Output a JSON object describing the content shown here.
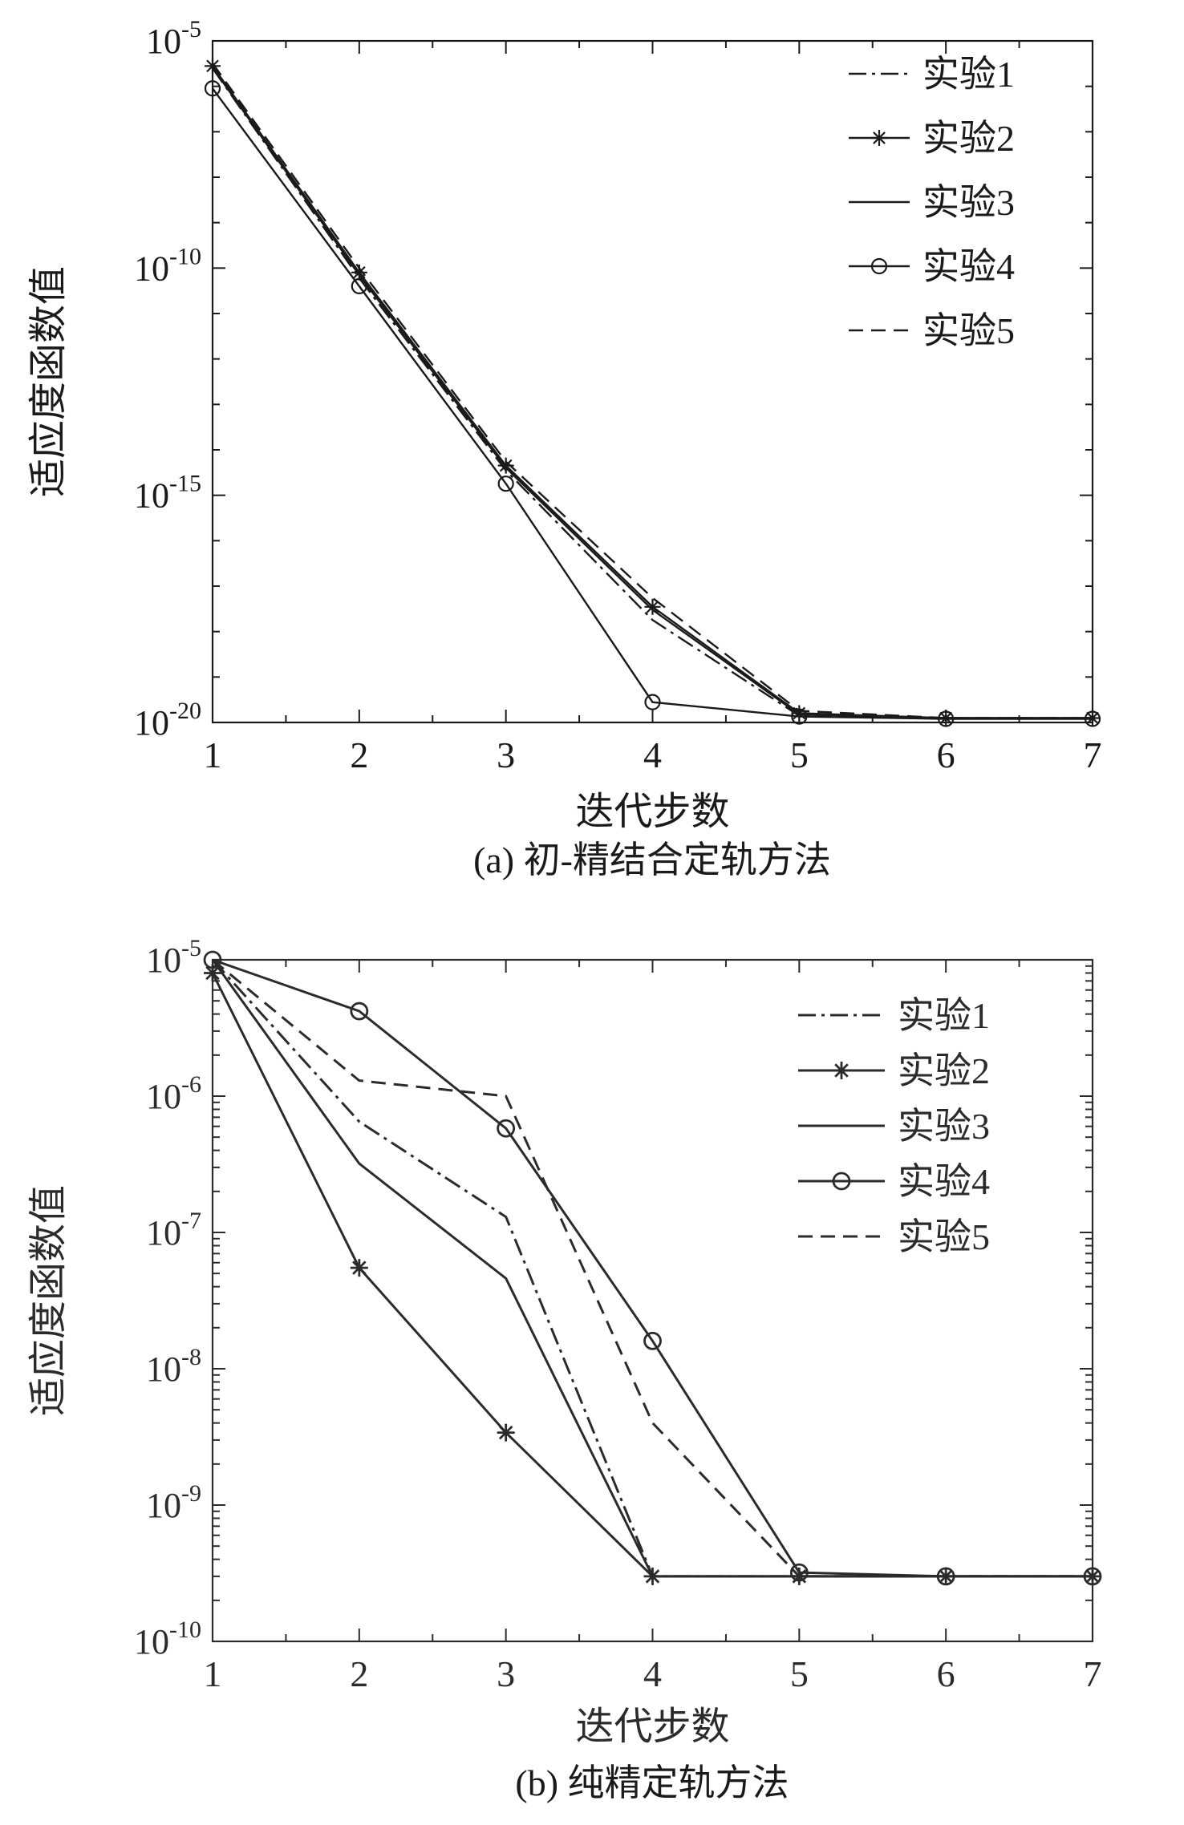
{
  "page": {
    "background": "#ffffff",
    "text_color": "#1a1a1a"
  },
  "chart_data": [
    {
      "id": "a",
      "type": "line",
      "caption": "(a) 初-精结合定轨方法",
      "xlabel": "迭代步数",
      "ylabel": "适应度函数值",
      "x": [
        1,
        2,
        3,
        4,
        5,
        6,
        7
      ],
      "xlim": [
        1,
        7
      ],
      "x_ticks": [
        1,
        2,
        3,
        4,
        5,
        6,
        7
      ],
      "y_scale": "log",
      "ylim": [
        1e-20,
        1e-05
      ],
      "ylim_exp": [
        -20,
        -5
      ],
      "y_tick_exponents": [
        -5,
        -10,
        -15,
        -20
      ],
      "y_minor": "decades",
      "grid": false,
      "legend_position": "top-right-inside",
      "line_color": "#1a1a1a",
      "series": [
        {
          "name": "实验1",
          "line": "dashdot",
          "marker": "none",
          "values": [
            2.5e-06,
            6e-11,
            3.5e-15,
            1.8e-18,
            1.4e-20,
            1.25e-20,
            1.25e-20
          ]
        },
        {
          "name": "实验2",
          "line": "solid",
          "marker": "asterisk",
          "values": [
            2.8e-06,
            8e-11,
            4.5e-15,
            3.5e-18,
            1.6e-20,
            1.25e-20,
            1.25e-20
          ]
        },
        {
          "name": "实验3",
          "line": "solid",
          "marker": "none",
          "values": [
            2.6e-06,
            7e-11,
            4e-15,
            3e-18,
            1.5e-20,
            1.25e-20,
            1.25e-20
          ]
        },
        {
          "name": "实验4",
          "line": "solid",
          "marker": "circle",
          "values": [
            9e-07,
            4e-11,
            1.8e-15,
            2.8e-20,
            1.35e-20,
            1.2e-20,
            1.2e-20
          ]
        },
        {
          "name": "实验5",
          "line": "dashed",
          "marker": "none",
          "values": [
            3.2e-06,
            1e-10,
            5.5e-15,
            5.5e-18,
            1.8e-20,
            1.25e-20,
            1.25e-20
          ]
        }
      ]
    },
    {
      "id": "b",
      "type": "line",
      "caption": "(b) 纯精定轨方法",
      "xlabel": "迭代步数",
      "ylabel": "适应度函数值",
      "x": [
        1,
        2,
        3,
        4,
        5,
        6,
        7
      ],
      "xlim": [
        1,
        7
      ],
      "x_ticks": [
        1,
        2,
        3,
        4,
        5,
        6,
        7
      ],
      "y_scale": "log",
      "ylim": [
        1e-10,
        1e-05
      ],
      "ylim_exp": [
        -10,
        -5
      ],
      "y_tick_exponents": [
        -5,
        -6,
        -7,
        -8,
        -9,
        -10
      ],
      "y_minor": "log-mantissa",
      "grid": false,
      "legend_position": "top-right-inside",
      "line_color": "#2b2b2b",
      "series": [
        {
          "name": "实验1",
          "line": "dashdot",
          "marker": "none",
          "values": [
            1e-05,
            6.5e-07,
            1.3e-07,
            3e-10,
            3e-10,
            3e-10,
            3e-10
          ]
        },
        {
          "name": "实验2",
          "line": "solid",
          "marker": "asterisk",
          "values": [
            8e-06,
            5.5e-08,
            3.4e-09,
            3e-10,
            3e-10,
            3e-10,
            3e-10
          ]
        },
        {
          "name": "实验3",
          "line": "solid",
          "marker": "none",
          "values": [
            1e-05,
            3.2e-07,
            4.6e-08,
            3e-10,
            3e-10,
            3e-10,
            3e-10
          ]
        },
        {
          "name": "实验4",
          "line": "solid",
          "marker": "circle",
          "values": [
            1e-05,
            4.2e-06,
            5.8e-07,
            1.6e-08,
            3.2e-10,
            3e-10,
            3e-10
          ]
        },
        {
          "name": "实验5",
          "line": "dashed",
          "marker": "none",
          "values": [
            1e-05,
            1.3e-06,
            1e-06,
            4e-09,
            3e-10,
            3e-10,
            3e-10
          ]
        }
      ]
    }
  ]
}
